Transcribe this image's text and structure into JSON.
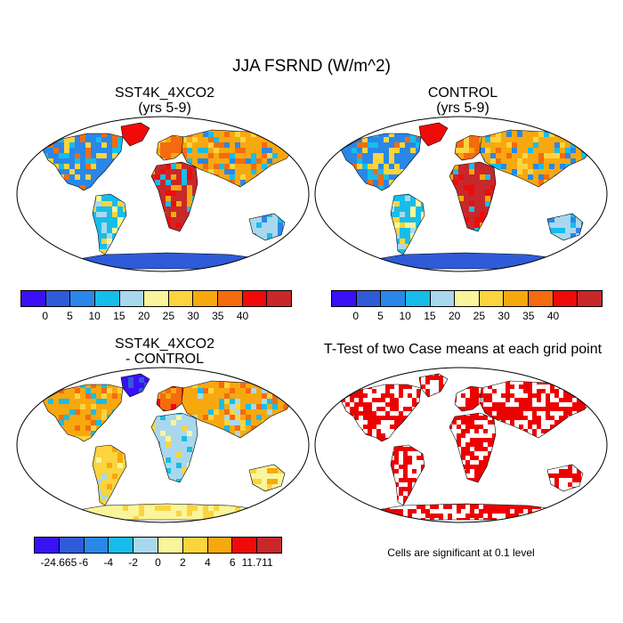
{
  "title": "JJA FSRND (W/m^2)",
  "panels": [
    {
      "id": "p1",
      "title_line1": "SST4K_4XCO2",
      "title_line2": "(yrs 5-9)"
    },
    {
      "id": "p2",
      "title_line1": "CONTROL",
      "title_line2": "(yrs 5-9)"
    },
    {
      "id": "p3",
      "title_line1": "SST4K_4XCO2",
      "title_line2": "- CONTROL"
    },
    {
      "id": "p4",
      "title_line1": "T-Test of two Case means at each grid point"
    }
  ],
  "colorbars": {
    "absolute": {
      "colors": [
        "#3a10f5",
        "#2f5bd8",
        "#2a87e8",
        "#17bdea",
        "#a9d8ee",
        "#faf59a",
        "#fbd43e",
        "#f8a80f",
        "#f46b10",
        "#f00a0a",
        "#c8282a"
      ],
      "labels": [
        "0",
        "5",
        "10",
        "15",
        "20",
        "25",
        "30",
        "35",
        "40"
      ]
    },
    "difference": {
      "colors": [
        "#3a10f5",
        "#2f5bd8",
        "#2a87e8",
        "#17bdea",
        "#a9d8ee",
        "#faf59a",
        "#fbd43e",
        "#f8a80f",
        "#f00a0a",
        "#c8282a"
      ],
      "labels": [
        "-24.665",
        "-6",
        "-4",
        "-2",
        "0",
        "2",
        "4",
        "6",
        "11.711"
      ]
    }
  },
  "significance_color": "#ee0000",
  "note": "Cells are significant at 0.1 level"
}
